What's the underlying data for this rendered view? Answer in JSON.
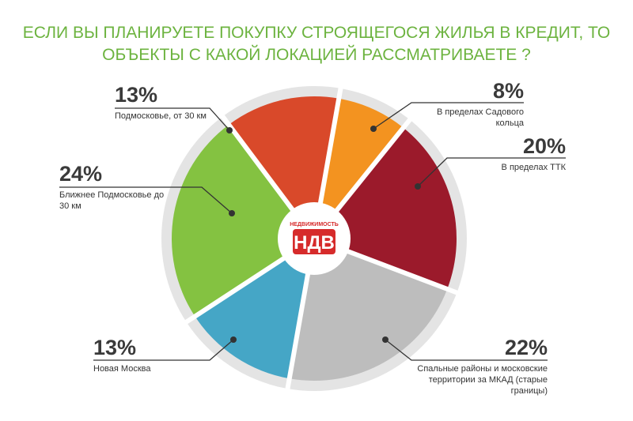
{
  "chart_data": {
    "type": "pie",
    "title": "ЕСЛИ ВЫ ПЛАНИРУЕТЕ ПОКУПКУ СТРОЯЩЕГОСЯ ЖИЛЬЯ В КРЕДИТ, ТО ОБЪЕКТЫ С КАКОЙ ЛОКАЦИЕЙ РАССМАТРИВАЕТЕ ?",
    "categories": [
      "В пределах Садового кольца",
      "В пределах ТТК",
      "Спальные районы и московские территории за МКАД (старые границы)",
      "Новая Москва",
      "Ближнее Подмосковье до 30 км",
      "Подмосковье, от 30 км"
    ],
    "values": [
      8,
      20,
      22,
      13,
      24,
      13
    ],
    "value_labels": [
      "8%",
      "20%",
      "22%",
      "13%",
      "24%",
      "13%"
    ],
    "colors": [
      "#f39320",
      "#9b1a2b",
      "#bdbdbd",
      "#45a6c6",
      "#84c241",
      "#d9492a"
    ]
  },
  "logo": {
    "caption": "НЕДВИЖИМОСТЬ",
    "text": "НДВ"
  }
}
